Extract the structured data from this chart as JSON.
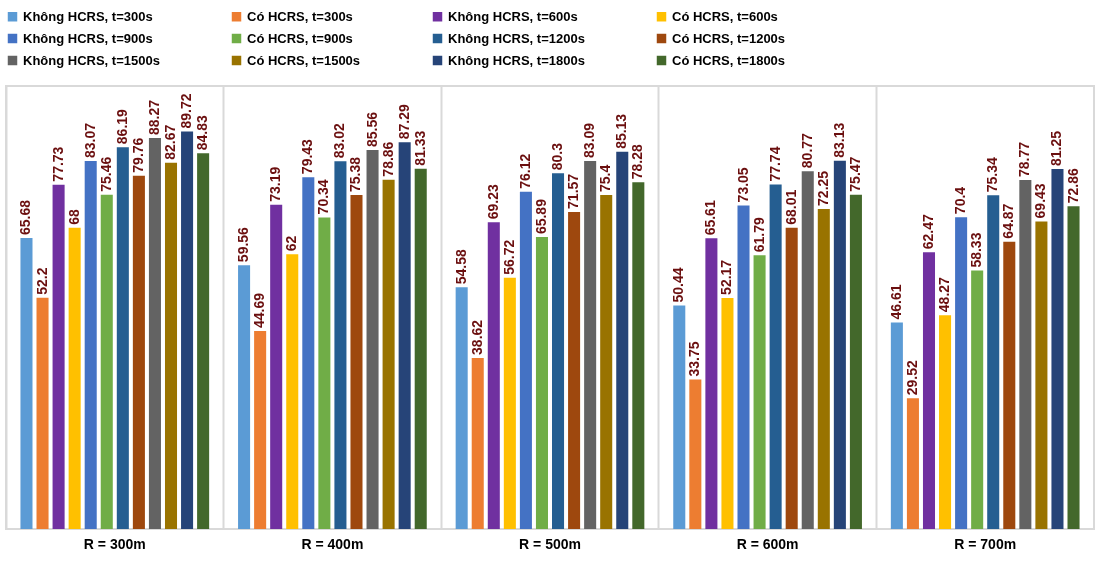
{
  "chart_data": {
    "type": "bar",
    "categories": [
      "R = 300m",
      "R = 400m",
      "R = 500m",
      "R = 600m",
      "R = 700m"
    ],
    "series": [
      {
        "name": "Không HCRS, t=300s",
        "color": "#5b9bd5",
        "values": [
          65.68,
          59.56,
          54.58,
          50.44,
          46.61
        ]
      },
      {
        "name": "Có HCRS, t=300s",
        "color": "#ed7d31",
        "values": [
          52.2,
          44.69,
          38.62,
          33.75,
          29.52
        ]
      },
      {
        "name": "Không HCRS, t=600s",
        "color": "#7030a0",
        "values": [
          77.73,
          73.19,
          69.23,
          65.61,
          62.47
        ]
      },
      {
        "name": "Có HCRS, t=600s",
        "color": "#ffc000",
        "values": [
          68,
          62,
          56.72,
          52.17,
          48.27
        ]
      },
      {
        "name": "Không HCRS, t=900s",
        "color": "#4472c4",
        "values": [
          83.07,
          79.43,
          76.12,
          73.05,
          70.4
        ]
      },
      {
        "name": "Có HCRS, t=900s",
        "color": "#70ad47",
        "values": [
          75.46,
          70.34,
          65.89,
          61.79,
          58.33
        ]
      },
      {
        "name": "Không HCRS, t=1200s",
        "color": "#255e91",
        "values": [
          86.19,
          83.02,
          80.3,
          77.74,
          75.34
        ]
      },
      {
        "name": "Có HCRS, t=1200s",
        "color": "#9e480e",
        "values": [
          79.76,
          75.38,
          71.57,
          68.01,
          64.87
        ]
      },
      {
        "name": "Không HCRS, t=1500s",
        "color": "#636363",
        "values": [
          88.27,
          85.56,
          83.09,
          80.77,
          78.77
        ]
      },
      {
        "name": "Có HCRS, t=1500s",
        "color": "#997300",
        "values": [
          82.67,
          78.86,
          75.4,
          72.25,
          69.43
        ]
      },
      {
        "name": "Không HCRS, t=1800s",
        "color": "#264478",
        "values": [
          89.72,
          87.29,
          85.13,
          83.13,
          81.25
        ]
      },
      {
        "name": "Có HCRS, t=1800s",
        "color": "#43682b",
        "values": [
          84.83,
          81.33,
          78.28,
          75.47,
          72.86
        ]
      }
    ],
    "ylim": [
      0,
      100
    ],
    "tick_labels": "x",
    "data_labels": true,
    "grid": "x",
    "legend": "top"
  }
}
